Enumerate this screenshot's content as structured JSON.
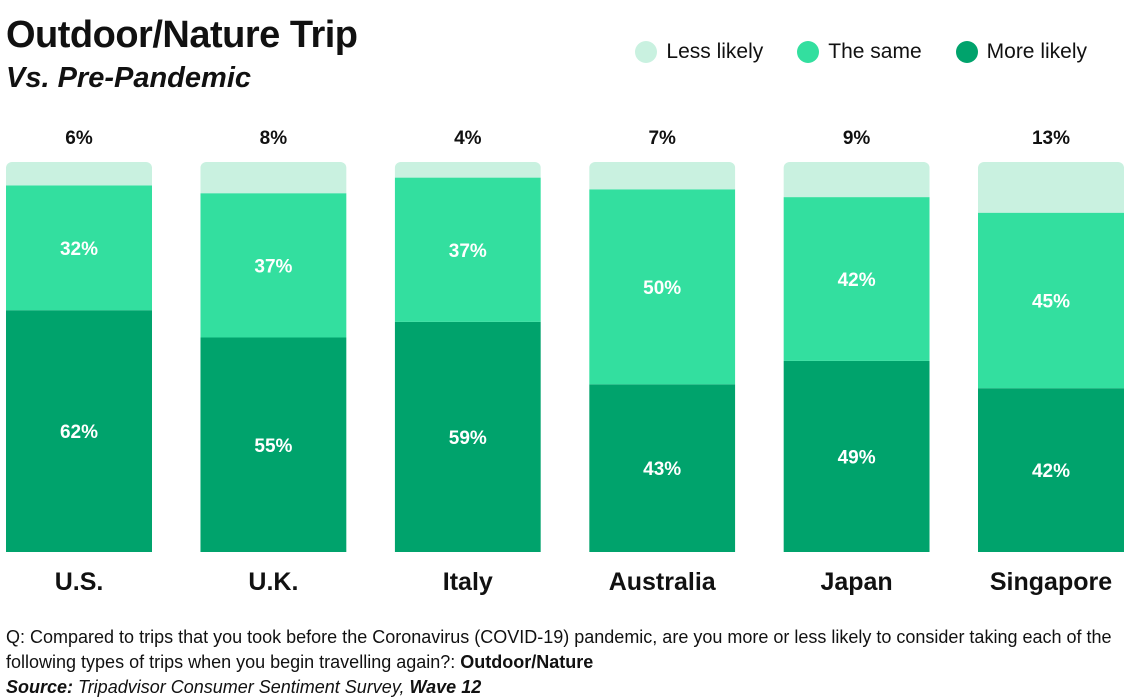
{
  "chart_data": {
    "type": "bar",
    "stacked": true,
    "title": "Outdoor/Nature Trip",
    "subtitle": "Vs. Pre-Pandemic",
    "categories": [
      "U.S.",
      "U.K.",
      "Italy",
      "Australia",
      "Japan",
      "Singapore"
    ],
    "series": [
      {
        "name": "More likely",
        "color": "#00a36c",
        "values": [
          62,
          55,
          59,
          43,
          49,
          42
        ]
      },
      {
        "name": "The same",
        "color": "#33df9f",
        "values": [
          32,
          37,
          37,
          50,
          42,
          45
        ]
      },
      {
        "name": "Less likely",
        "color": "#c9f1e0",
        "values": [
          6,
          8,
          4,
          7,
          9,
          13
        ]
      }
    ],
    "legend_order": [
      "Less likely",
      "The same",
      "More likely"
    ],
    "legend_position": "top-right",
    "ylim": [
      0,
      100
    ],
    "value_suffix": "%",
    "grid": false
  },
  "footer": {
    "question_prefix": "Q:",
    "question_text": " Compared to trips that you took before the Coronavirus (COVID-19) pandemic, are you more or less likely to consider taking each of the following types of trips when you begin travelling again?: ",
    "question_topic": "Outdoor/Nature",
    "source_label": "Source:",
    "source_text": " Tripadvisor Consumer Sentiment Survey, ",
    "source_wave": "Wave 12"
  }
}
